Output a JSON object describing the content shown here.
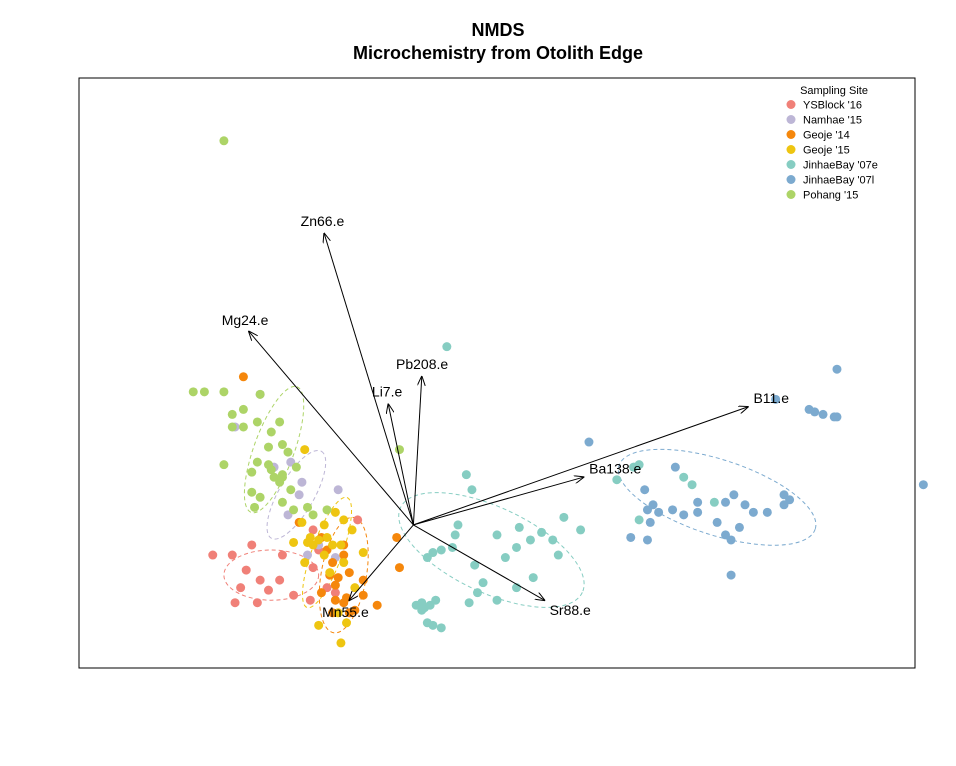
{
  "chart_data": {
    "type": "scatter",
    "title": "NMDS",
    "subtitle": "Microchemistry from Otolith Edge",
    "xlabel": "",
    "ylabel": "",
    "xlim": [
      -1.2,
      1.8
    ],
    "ylim": [
      -0.57,
      1.78
    ],
    "axes_drawn": false,
    "grid": false,
    "legend": {
      "title": "Sampling Site",
      "position": "top-right"
    },
    "series": [
      {
        "name": "YSBlock '16",
        "color": "#F08078",
        "points": [
          [
            -0.72,
            -0.12
          ],
          [
            -0.58,
            -0.08
          ],
          [
            -0.47,
            -0.12
          ],
          [
            -0.48,
            -0.22
          ],
          [
            -0.36,
            -0.02
          ],
          [
            -0.34,
            -0.1
          ],
          [
            -0.6,
            -0.18
          ],
          [
            -0.62,
            -0.25
          ],
          [
            -0.52,
            -0.26
          ],
          [
            -0.43,
            -0.28
          ],
          [
            -0.37,
            -0.3
          ],
          [
            -0.3,
            -0.2
          ],
          [
            -0.56,
            -0.31
          ],
          [
            -0.64,
            -0.31
          ],
          [
            -0.31,
            -0.25
          ],
          [
            -0.28,
            -0.27
          ],
          [
            -0.55,
            -0.22
          ],
          [
            -0.2,
            0.02
          ],
          [
            -0.65,
            -0.12
          ],
          [
            -0.36,
            -0.17
          ]
        ]
      },
      {
        "name": "Namhae '15",
        "color": "#BDB6D6",
        "points": [
          [
            -0.55,
            0.52
          ],
          [
            -0.64,
            0.39
          ],
          [
            -0.5,
            0.23
          ],
          [
            -0.44,
            0.25
          ],
          [
            -0.41,
            0.12
          ],
          [
            -0.45,
            0.04
          ],
          [
            -0.38,
            -0.12
          ],
          [
            -0.34,
            -0.08
          ],
          [
            -0.28,
            -0.13
          ],
          [
            -0.4,
            0.17
          ],
          [
            -0.27,
            0.14
          ]
        ]
      },
      {
        "name": "Geoje '14",
        "color": "#F5870C",
        "points": [
          [
            -0.61,
            0.59
          ],
          [
            -0.41,
            0.01
          ],
          [
            -0.25,
            -0.12
          ],
          [
            -0.28,
            -0.24
          ],
          [
            -0.25,
            -0.31
          ],
          [
            -0.23,
            -0.35
          ],
          [
            -0.21,
            -0.34
          ],
          [
            -0.29,
            -0.35
          ],
          [
            -0.33,
            -0.27
          ],
          [
            -0.3,
            -0.2
          ],
          [
            -0.27,
            -0.21
          ],
          [
            -0.31,
            -0.1
          ],
          [
            -0.18,
            -0.22
          ],
          [
            -0.18,
            -0.28
          ],
          [
            -0.13,
            -0.32
          ],
          [
            -0.24,
            -0.29
          ],
          [
            -0.28,
            -0.3
          ],
          [
            -0.33,
            -0.05
          ],
          [
            -0.29,
            -0.15
          ],
          [
            -0.23,
            -0.19
          ],
          [
            -0.25,
            -0.08
          ],
          [
            -0.05,
            -0.17
          ],
          [
            -0.06,
            -0.05
          ]
        ]
      },
      {
        "name": "Geoje '15",
        "color": "#EEC511",
        "points": [
          [
            -0.39,
            0.3
          ],
          [
            -0.32,
            0.0
          ],
          [
            -0.28,
            0.05
          ],
          [
            -0.25,
            0.02
          ],
          [
            -0.26,
            -0.08
          ],
          [
            -0.22,
            -0.02
          ],
          [
            -0.18,
            -0.11
          ],
          [
            -0.29,
            -0.08
          ],
          [
            -0.32,
            -0.12
          ],
          [
            -0.25,
            -0.15
          ],
          [
            -0.3,
            -0.19
          ],
          [
            -0.36,
            -0.08
          ],
          [
            -0.31,
            -0.05
          ],
          [
            -0.4,
            0.01
          ],
          [
            -0.38,
            -0.07
          ],
          [
            -0.37,
            -0.05
          ],
          [
            -0.34,
            -0.06
          ],
          [
            -0.27,
            -0.35
          ],
          [
            -0.34,
            -0.4
          ],
          [
            -0.26,
            -0.47
          ],
          [
            -0.21,
            -0.25
          ],
          [
            -0.24,
            -0.39
          ],
          [
            -0.39,
            -0.15
          ],
          [
            -0.43,
            -0.07
          ]
        ]
      },
      {
        "name": "JinhaeBay '07e",
        "color": "#86CDC2",
        "points": [
          [
            0.12,
            0.71
          ],
          [
            0.21,
            0.14
          ],
          [
            0.19,
            0.2
          ],
          [
            0.15,
            -0.04
          ],
          [
            0.16,
            0.0
          ],
          [
            0.14,
            -0.09
          ],
          [
            0.1,
            -0.1
          ],
          [
            0.07,
            -0.11
          ],
          [
            0.05,
            -0.13
          ],
          [
            0.22,
            -0.16
          ],
          [
            0.3,
            -0.04
          ],
          [
            0.33,
            -0.13
          ],
          [
            0.37,
            -0.25
          ],
          [
            0.38,
            -0.01
          ],
          [
            0.37,
            -0.09
          ],
          [
            0.42,
            -0.06
          ],
          [
            0.46,
            -0.03
          ],
          [
            0.52,
            -0.12
          ],
          [
            0.54,
            0.03
          ],
          [
            0.6,
            -0.02
          ],
          [
            0.5,
            -0.06
          ],
          [
            0.43,
            -0.21
          ],
          [
            0.23,
            -0.27
          ],
          [
            0.3,
            -0.3
          ],
          [
            0.2,
            -0.31
          ],
          [
            0.01,
            -0.32
          ],
          [
            0.03,
            -0.34
          ],
          [
            0.04,
            -0.33
          ],
          [
            0.08,
            -0.3
          ],
          [
            0.03,
            -0.31
          ],
          [
            0.06,
            -0.32
          ],
          [
            0.05,
            -0.39
          ],
          [
            0.07,
            -0.4
          ],
          [
            0.1,
            -0.41
          ],
          [
            0.25,
            -0.23
          ],
          [
            0.79,
            0.23
          ],
          [
            0.73,
            0.18
          ],
          [
            0.81,
            0.24
          ],
          [
            0.81,
            0.02
          ],
          [
            0.97,
            0.19
          ],
          [
            1.0,
            0.16
          ],
          [
            1.08,
            0.09
          ]
        ]
      },
      {
        "name": "JinhaeBay '07l",
        "color": "#7CAACF",
        "points": [
          [
            1.3,
            0.5
          ],
          [
            1.42,
            0.46
          ],
          [
            1.44,
            0.45
          ],
          [
            1.47,
            0.44
          ],
          [
            1.51,
            0.43
          ],
          [
            1.52,
            0.43
          ],
          [
            1.52,
            0.62
          ],
          [
            1.83,
            0.16
          ],
          [
            0.83,
            0.14
          ],
          [
            0.94,
            0.23
          ],
          [
            0.84,
            0.06
          ],
          [
            0.86,
            0.08
          ],
          [
            0.88,
            0.05
          ],
          [
            0.85,
            0.01
          ],
          [
            0.93,
            0.06
          ],
          [
            0.97,
            0.04
          ],
          [
            1.02,
            0.09
          ],
          [
            1.02,
            0.05
          ],
          [
            1.09,
            0.01
          ],
          [
            1.12,
            0.09
          ],
          [
            1.15,
            0.12
          ],
          [
            1.19,
            0.08
          ],
          [
            1.22,
            0.05
          ],
          [
            1.27,
            0.05
          ],
          [
            1.33,
            0.12
          ],
          [
            1.33,
            0.08
          ],
          [
            1.35,
            0.1
          ],
          [
            1.12,
            -0.04
          ],
          [
            1.17,
            -0.01
          ],
          [
            1.14,
            -0.06
          ],
          [
            0.84,
            -0.06
          ],
          [
            0.63,
            0.33
          ],
          [
            0.78,
            -0.05
          ],
          [
            1.14,
            -0.2
          ]
        ]
      },
      {
        "name": "Pohang '15",
        "color": "#ADD467",
        "points": [
          [
            -0.68,
            1.53
          ],
          [
            -0.79,
            0.53
          ],
          [
            -0.75,
            0.53
          ],
          [
            -0.68,
            0.53
          ],
          [
            -0.55,
            0.52
          ],
          [
            -0.61,
            0.46
          ],
          [
            -0.65,
            0.39
          ],
          [
            -0.61,
            0.39
          ],
          [
            -0.56,
            0.41
          ],
          [
            -0.51,
            0.37
          ],
          [
            -0.48,
            0.41
          ],
          [
            -0.52,
            0.31
          ],
          [
            -0.47,
            0.32
          ],
          [
            -0.45,
            0.29
          ],
          [
            -0.56,
            0.25
          ],
          [
            -0.52,
            0.24
          ],
          [
            -0.47,
            0.19
          ],
          [
            -0.47,
            0.2
          ],
          [
            -0.51,
            0.22
          ],
          [
            -0.42,
            0.23
          ],
          [
            -0.58,
            0.21
          ],
          [
            -0.5,
            0.19
          ],
          [
            -0.48,
            0.17
          ],
          [
            -0.44,
            0.14
          ],
          [
            -0.55,
            0.11
          ],
          [
            -0.47,
            0.09
          ],
          [
            -0.43,
            0.06
          ],
          [
            -0.38,
            0.07
          ],
          [
            -0.36,
            0.04
          ],
          [
            -0.31,
            0.06
          ],
          [
            -0.58,
            0.13
          ],
          [
            -0.57,
            0.07
          ],
          [
            -0.68,
            0.24
          ],
          [
            -0.65,
            0.44
          ],
          [
            -0.05,
            0.3
          ]
        ]
      }
    ],
    "ellipses": [
      {
        "series": "YSBlock '16",
        "cx": -0.51,
        "cy": -0.2,
        "rx": 0.17,
        "ry": 0.1,
        "angle": 0
      },
      {
        "series": "Namhae '15",
        "cx": -0.42,
        "cy": 0.12,
        "rx": 0.18,
        "ry": 0.07,
        "angle": -60
      },
      {
        "series": "Geoje '14",
        "cx": -0.25,
        "cy": -0.2,
        "rx": 0.21,
        "ry": 0.09,
        "angle": -80
      },
      {
        "series": "Geoje '15",
        "cx": -0.31,
        "cy": -0.11,
        "rx": 0.21,
        "ry": 0.06,
        "angle": -70
      },
      {
        "series": "JinhaeBay '07e",
        "cx": 0.28,
        "cy": -0.1,
        "rx": 0.36,
        "ry": 0.17,
        "angle": 25
      },
      {
        "series": "JinhaeBay '07l",
        "cx": 1.09,
        "cy": 0.11,
        "rx": 0.37,
        "ry": 0.15,
        "angle": 18
      },
      {
        "series": "Pohang '15",
        "cx": -0.5,
        "cy": 0.3,
        "rx": 0.24,
        "ry": 0.08,
        "angle": -70
      }
    ],
    "vectors": [
      {
        "name": "Zn66.e",
        "x": -0.32,
        "y": 1.16
      },
      {
        "name": "Mg24.e",
        "x": -0.59,
        "y": 0.77
      },
      {
        "name": "Pb208.e",
        "x": 0.03,
        "y": 0.59
      },
      {
        "name": "Li7.e",
        "x": -0.09,
        "y": 0.48
      },
      {
        "name": "B11.e",
        "x": 1.2,
        "y": 0.47
      },
      {
        "name": "Ba138.e",
        "x": 0.61,
        "y": 0.19
      },
      {
        "name": "Sr88.e",
        "x": 0.47,
        "y": -0.3
      },
      {
        "name": "Mn55.e",
        "x": -0.23,
        "y": -0.3
      }
    ]
  }
}
